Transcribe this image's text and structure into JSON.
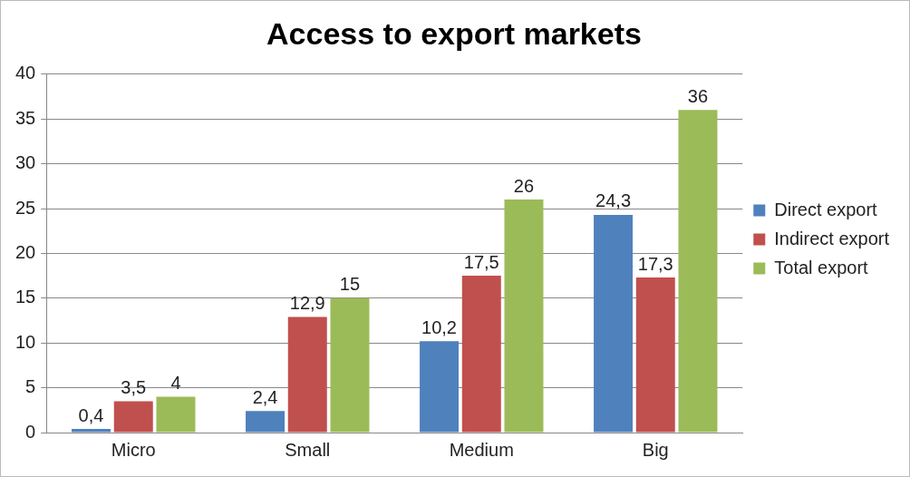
{
  "chart_data": {
    "type": "bar",
    "title": "Access to export markets",
    "categories": [
      "Micro",
      "Small",
      "Medium",
      "Big"
    ],
    "series": [
      {
        "name": "Direct export",
        "color": "#4f81bd",
        "values": [
          0.4,
          2.4,
          10.2,
          24.3
        ],
        "value_labels": [
          "0,4",
          "2,4",
          "10,2",
          "24,3"
        ]
      },
      {
        "name": "Indirect export",
        "color": "#c0504d",
        "values": [
          3.5,
          12.9,
          17.5,
          17.3
        ],
        "value_labels": [
          "3,5",
          "12,9",
          "17,5",
          "17,3"
        ]
      },
      {
        "name": "Total export",
        "color": "#9bbb59",
        "values": [
          4,
          15,
          26,
          36
        ],
        "value_labels": [
          "4",
          "15",
          "26",
          "36"
        ]
      }
    ],
    "ylim": [
      0,
      40
    ],
    "yticks": [
      0,
      5,
      10,
      15,
      20,
      25,
      30,
      35,
      40
    ],
    "grid": "y",
    "legend": "right"
  }
}
